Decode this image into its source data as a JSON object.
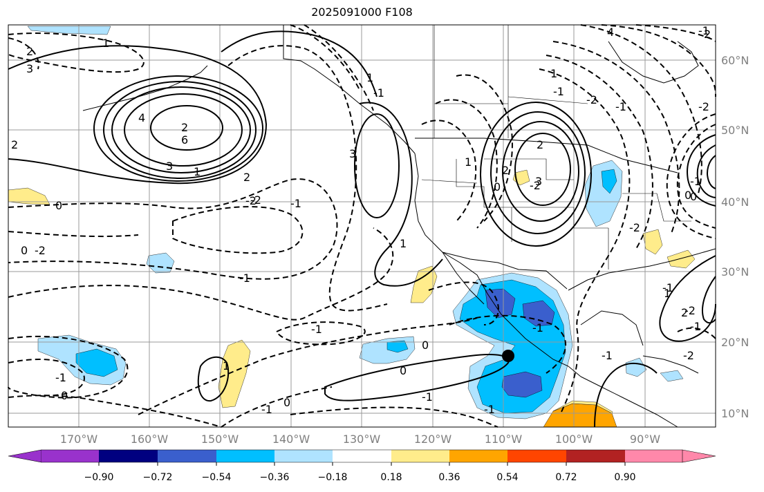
{
  "title": "2025091000 F108",
  "lat_labels": [
    "60°N",
    "50°N",
    "40°N",
    "30°N",
    "20°N",
    "10°N"
  ],
  "lon_labels": [
    "170°W",
    "160°W",
    "150°W",
    "140°W",
    "130°W",
    "120°W",
    "110°W",
    "100°W",
    "90°W"
  ],
  "colorbar": {
    "colors": [
      "#9932cc",
      "#000080",
      "#3a5fcd",
      "#00bfff",
      "#afe3ff",
      "#ffffff",
      "#ffec8b",
      "#ffa500",
      "#ff4500",
      "#b22222",
      "#ff88aa"
    ],
    "tick_labels": [
      "−0.90",
      "−0.72",
      "−0.54",
      "−0.36",
      "−0.18",
      "0.18",
      "0.36",
      "0.54",
      "0.72",
      "0.90"
    ]
  },
  "contour_labels": [
    "1",
    "2",
    "3",
    "4",
    "6",
    "3",
    "1",
    "2",
    "-2",
    "0",
    "2",
    "2",
    "0",
    "-1",
    "-1",
    "-1",
    "-1",
    "-1",
    "-2",
    "-2",
    "-1",
    "-1",
    "-2",
    "-1",
    "-2",
    "-1",
    "-2",
    "-1",
    "0",
    "-1",
    "1",
    "0",
    "0",
    "1",
    "0",
    "0",
    "1",
    "2",
    "-1",
    "-2",
    "3",
    "1",
    "2",
    "1",
    "2",
    "0",
    "1",
    "-2",
    "-1",
    "3",
    "-1",
    "-2",
    "-1",
    "-1",
    "4",
    "0",
    "2"
  ]
}
